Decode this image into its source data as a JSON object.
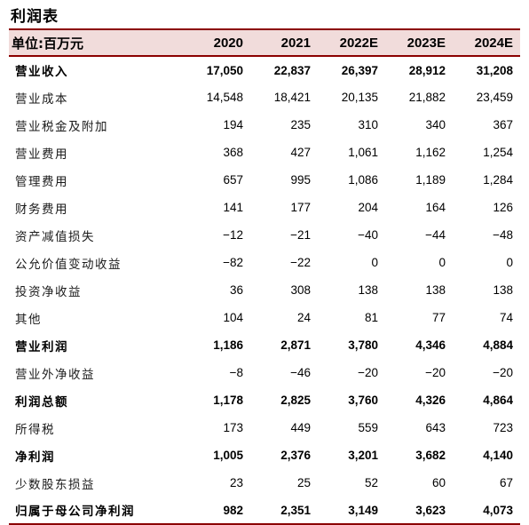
{
  "title": "利润表",
  "header": {
    "unit": "单位:百万元",
    "years": [
      "2020",
      "2021",
      "2022E",
      "2023E",
      "2024E"
    ]
  },
  "rows": [
    {
      "label": "营业收入",
      "values": [
        "17,050",
        "22,837",
        "26,397",
        "28,912",
        "31,208"
      ],
      "bold": true
    },
    {
      "label": "营业成本",
      "values": [
        "14,548",
        "18,421",
        "20,135",
        "21,882",
        "23,459"
      ]
    },
    {
      "label": "营业税金及附加",
      "values": [
        "194",
        "235",
        "310",
        "340",
        "367"
      ]
    },
    {
      "label": "营业费用",
      "values": [
        "368",
        "427",
        "1,061",
        "1,162",
        "1,254"
      ]
    },
    {
      "label": "管理费用",
      "values": [
        "657",
        "995",
        "1,086",
        "1,189",
        "1,284"
      ]
    },
    {
      "label": "财务费用",
      "values": [
        "141",
        "177",
        "204",
        "164",
        "126"
      ]
    },
    {
      "label": "资产减值损失",
      "values": [
        "−12",
        "−21",
        "−40",
        "−44",
        "−48"
      ]
    },
    {
      "label": "公允价值变动收益",
      "values": [
        "−82",
        "−22",
        "0",
        "0",
        "0"
      ]
    },
    {
      "label": "投资净收益",
      "values": [
        "36",
        "308",
        "138",
        "138",
        "138"
      ]
    },
    {
      "label": "其他",
      "values": [
        "104",
        "24",
        "81",
        "77",
        "74"
      ]
    },
    {
      "label": "营业利润",
      "values": [
        "1,186",
        "2,871",
        "3,780",
        "4,346",
        "4,884"
      ],
      "bold": true
    },
    {
      "label": "营业外净收益",
      "values": [
        "−8",
        "−46",
        "−20",
        "−20",
        "−20"
      ]
    },
    {
      "label": "利润总额",
      "values": [
        "1,178",
        "2,825",
        "3,760",
        "4,326",
        "4,864"
      ],
      "bold": true
    },
    {
      "label": "所得税",
      "values": [
        "173",
        "449",
        "559",
        "643",
        "723"
      ]
    },
    {
      "label": "净利润",
      "values": [
        "1,005",
        "2,376",
        "3,201",
        "3,682",
        "4,140"
      ],
      "bold": true
    },
    {
      "label": "少数股东损益",
      "values": [
        "23",
        "25",
        "52",
        "60",
        "67"
      ]
    },
    {
      "label": "归属于母公司净利润",
      "values": [
        "982",
        "2,351",
        "3,149",
        "3,623",
        "4,073"
      ],
      "bold": true
    }
  ]
}
